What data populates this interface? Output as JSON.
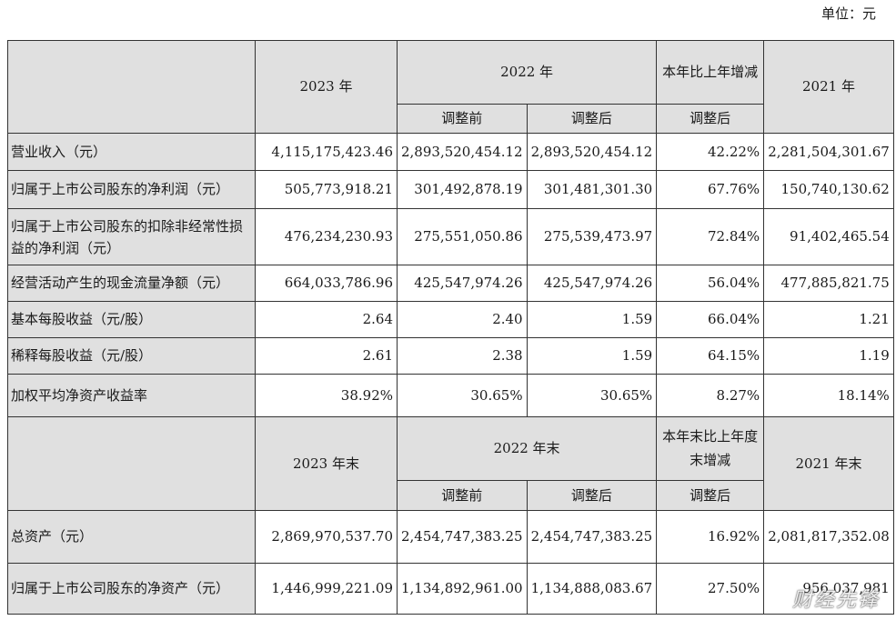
{
  "unit_label": "单位：元",
  "table1": {
    "header": {
      "col_2023": "2023 年",
      "col_2022": "2022 年",
      "col_change": "本年比上年增减",
      "col_2021": "2021 年",
      "sub_before": "调整前",
      "sub_after": "调整后",
      "sub_change_after": "调整后"
    },
    "rows": [
      {
        "label": "营业收入（元）",
        "v2023": "4,115,175,423.46",
        "v2022_before": "2,893,520,454.12",
        "v2022_after": "2,893,520,454.12",
        "change": "42.22%",
        "v2021": "2,281,504,301.67"
      },
      {
        "label": "归属于上市公司股东的净利润（元）",
        "v2023": "505,773,918.21",
        "v2022_before": "301,492,878.19",
        "v2022_after": "301,481,301.30",
        "change": "67.76%",
        "v2021": "150,740,130.62"
      },
      {
        "label": "归属于上市公司股东的扣除非经常性损益的净利润（元）",
        "v2023": "476,234,230.93",
        "v2022_before": "275,551,050.86",
        "v2022_after": "275,539,473.97",
        "change": "72.84%",
        "v2021": "91,402,465.54"
      },
      {
        "label": "经营活动产生的现金流量净额（元）",
        "v2023": "664,033,786.96",
        "v2022_before": "425,547,974.26",
        "v2022_after": "425,547,974.26",
        "change": "56.04%",
        "v2021": "477,885,821.75"
      },
      {
        "label": "基本每股收益（元/股）",
        "v2023": "2.64",
        "v2022_before": "2.40",
        "v2022_after": "1.59",
        "change": "66.04%",
        "v2021": "1.21"
      },
      {
        "label": "稀释每股收益（元/股）",
        "v2023": "2.61",
        "v2022_before": "2.38",
        "v2022_after": "1.59",
        "change": "64.15%",
        "v2021": "1.19"
      },
      {
        "label": "加权平均净资产收益率",
        "v2023": "38.92%",
        "v2022_before": "30.65%",
        "v2022_after": "30.65%",
        "change": "8.27%",
        "v2021": "18.14%"
      }
    ]
  },
  "table2": {
    "header": {
      "col_2023": "2023 年末",
      "col_2022": "2022 年末",
      "col_change": "本年末比上年度末增减",
      "col_2021": "2021 年末",
      "sub_before": "调整前",
      "sub_after": "调整后",
      "sub_change_after": "调整后"
    },
    "rows": [
      {
        "label": "总资产（元）",
        "v2023": "2,869,970,537.70",
        "v2022_before": "2,454,747,383.25",
        "v2022_after": "2,454,747,383.25",
        "change": "16.92%",
        "v2021": "2,081,817,352.08"
      },
      {
        "label": "归属于上市公司股东的净资产（元）",
        "v2023": "1,446,999,221.09",
        "v2022_before": "1,134,892,961.00",
        "v2022_after": "1,134,888,083.67",
        "change": "27.50%",
        "v2021": "956,037,981"
      }
    ]
  },
  "watermark": "财经先锋"
}
